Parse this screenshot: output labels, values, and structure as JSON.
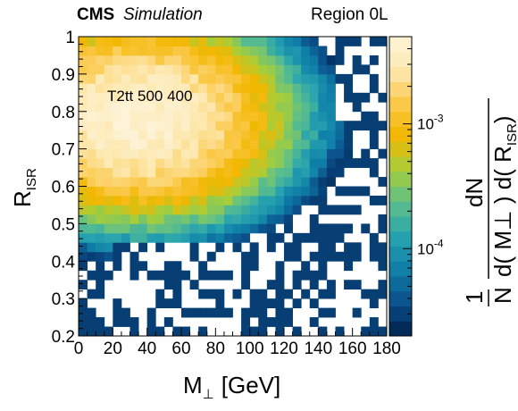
{
  "header": {
    "experiment": "CMS",
    "label": "Simulation",
    "region": "Region 0L"
  },
  "chart_data": {
    "type": "heatmap",
    "annotation": "T2tt 500 400",
    "xlabel": {
      "main": "M",
      "sym": "⊥",
      "unit": "[GeV]"
    },
    "ylabel": {
      "main": "R",
      "sub": "ISR"
    },
    "zlabel": {
      "prefactor_num": "1",
      "prefactor_den": "N",
      "numerator": "dN",
      "denominator": "d( M⊥ ) d( R",
      "denominator_sub": "ISR",
      "denominator_close": ")"
    },
    "xlim": [
      0,
      180
    ],
    "ylim": [
      0.2,
      1.0
    ],
    "zscale": "log",
    "zlim": [
      2e-05,
      0.005
    ],
    "x_ticks": [
      "0",
      "20",
      "40",
      "60",
      "80",
      "100",
      "120",
      "140",
      "160",
      "180"
    ],
    "y_ticks": [
      "0.2",
      "0.3",
      "0.4",
      "0.5",
      "0.6",
      "0.7",
      "0.8",
      "0.9",
      "1"
    ],
    "z_ticks": [
      {
        "value": 0.001,
        "base": "10",
        "exp": "-3"
      },
      {
        "value": 0.0001,
        "base": "10",
        "exp": "-4"
      }
    ],
    "bins": {
      "nx": 36,
      "ny": 32
    },
    "peak": {
      "x": 35,
      "y": 0.78,
      "value": 0.0045
    },
    "colormap": [
      "#00204c",
      "#0b4f8a",
      "#0f7fa8",
      "#27a3b0",
      "#5cbf8b",
      "#a6ce3a",
      "#f2b700",
      "#fbc94a",
      "#fde8b0",
      "#fdf3d8"
    ]
  }
}
